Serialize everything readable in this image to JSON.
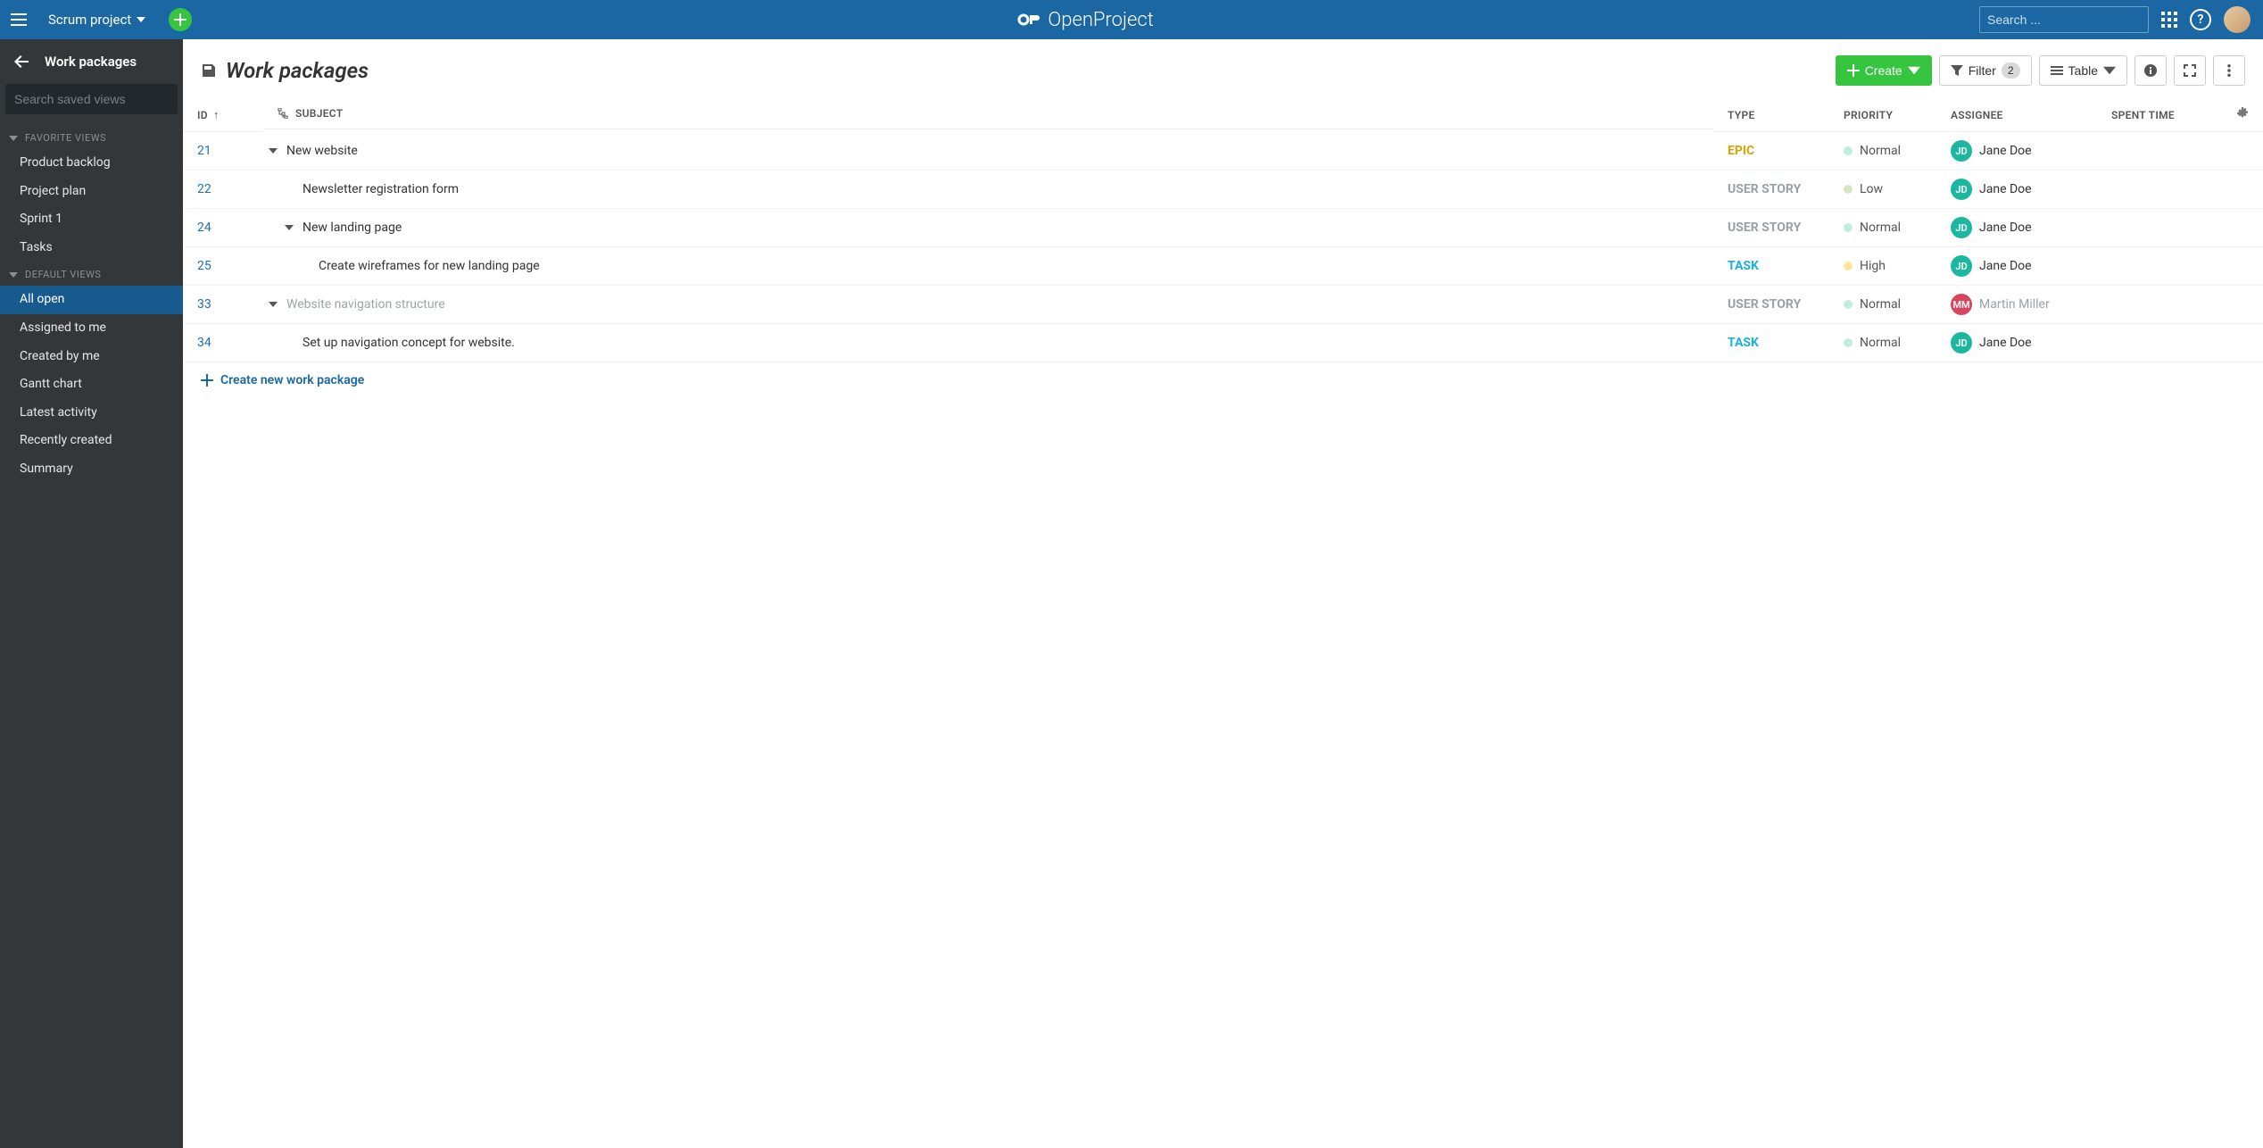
{
  "colors": {
    "topbar_bg": "#1a67a3",
    "sidebar_bg": "#333739",
    "sidebar_active": "#175a8e",
    "create_btn": "#35c53f",
    "link": "#1f6fad"
  },
  "header": {
    "project_name": "Scrum project",
    "brand": "OpenProject",
    "search_placeholder": "Search ..."
  },
  "sidebar": {
    "title": "Work packages",
    "search_placeholder": "Search saved views",
    "sections": [
      {
        "label": "FAVORITE VIEWS",
        "items": [
          {
            "label": "Product backlog",
            "active": false
          },
          {
            "label": "Project plan",
            "active": false
          },
          {
            "label": "Sprint 1",
            "active": false
          },
          {
            "label": "Tasks",
            "active": false
          }
        ]
      },
      {
        "label": "DEFAULT VIEWS",
        "items": [
          {
            "label": "All open",
            "active": true
          },
          {
            "label": "Assigned to me",
            "active": false
          },
          {
            "label": "Created by me",
            "active": false
          },
          {
            "label": "Gantt chart",
            "active": false
          },
          {
            "label": "Latest activity",
            "active": false
          },
          {
            "label": "Recently created",
            "active": false
          },
          {
            "label": "Summary",
            "active": false
          }
        ]
      }
    ]
  },
  "toolbar": {
    "title": "Work packages",
    "create_label": "Create",
    "filter_label": "Filter",
    "filter_count": "2",
    "view_label": "Table"
  },
  "table": {
    "columns": {
      "id": "ID",
      "subject": "SUBJECT",
      "type": "TYPE",
      "priority": "PRIORITY",
      "assignee": "ASSIGNEE",
      "spent_time": "SPENT TIME"
    },
    "type_colors": {
      "EPIC": "#d9a400",
      "USER STORY": "#9aa0a3",
      "TASK": "#1bb1dd"
    },
    "priority_colors": {
      "Normal": "#bfeede",
      "Low": "#d8e7c3",
      "High": "#ffe49a"
    },
    "assignee_colors": {
      "JD": "#1cb79e",
      "MM": "#d9455f"
    },
    "rows": [
      {
        "id": "21",
        "subject": "New website",
        "depth": 0,
        "expandable": true,
        "muted": false,
        "type": "EPIC",
        "priority": "Normal",
        "assignee": {
          "initials": "JD",
          "name": "Jane Doe",
          "muted": false
        }
      },
      {
        "id": "22",
        "subject": "Newsletter registration form",
        "depth": 1,
        "expandable": false,
        "muted": false,
        "type": "USER STORY",
        "priority": "Low",
        "assignee": {
          "initials": "JD",
          "name": "Jane Doe",
          "muted": false
        }
      },
      {
        "id": "24",
        "subject": "New landing page",
        "depth": 1,
        "expandable": true,
        "muted": false,
        "type": "USER STORY",
        "priority": "Normal",
        "assignee": {
          "initials": "JD",
          "name": "Jane Doe",
          "muted": false
        }
      },
      {
        "id": "25",
        "subject": "Create wireframes for new landing page",
        "depth": 2,
        "expandable": false,
        "muted": false,
        "type": "TASK",
        "priority": "High",
        "assignee": {
          "initials": "JD",
          "name": "Jane Doe",
          "muted": false
        }
      },
      {
        "id": "33",
        "subject": "Website navigation structure",
        "depth": 0,
        "expandable": true,
        "muted": true,
        "type": "USER STORY",
        "priority": "Normal",
        "assignee": {
          "initials": "MM",
          "name": "Martin Miller",
          "muted": true
        }
      },
      {
        "id": "34",
        "subject": "Set up navigation concept for website.",
        "depth": 1,
        "expandable": false,
        "muted": false,
        "type": "TASK",
        "priority": "Normal",
        "assignee": {
          "initials": "JD",
          "name": "Jane Doe",
          "muted": false
        }
      }
    ],
    "create_label": "Create new work package"
  }
}
